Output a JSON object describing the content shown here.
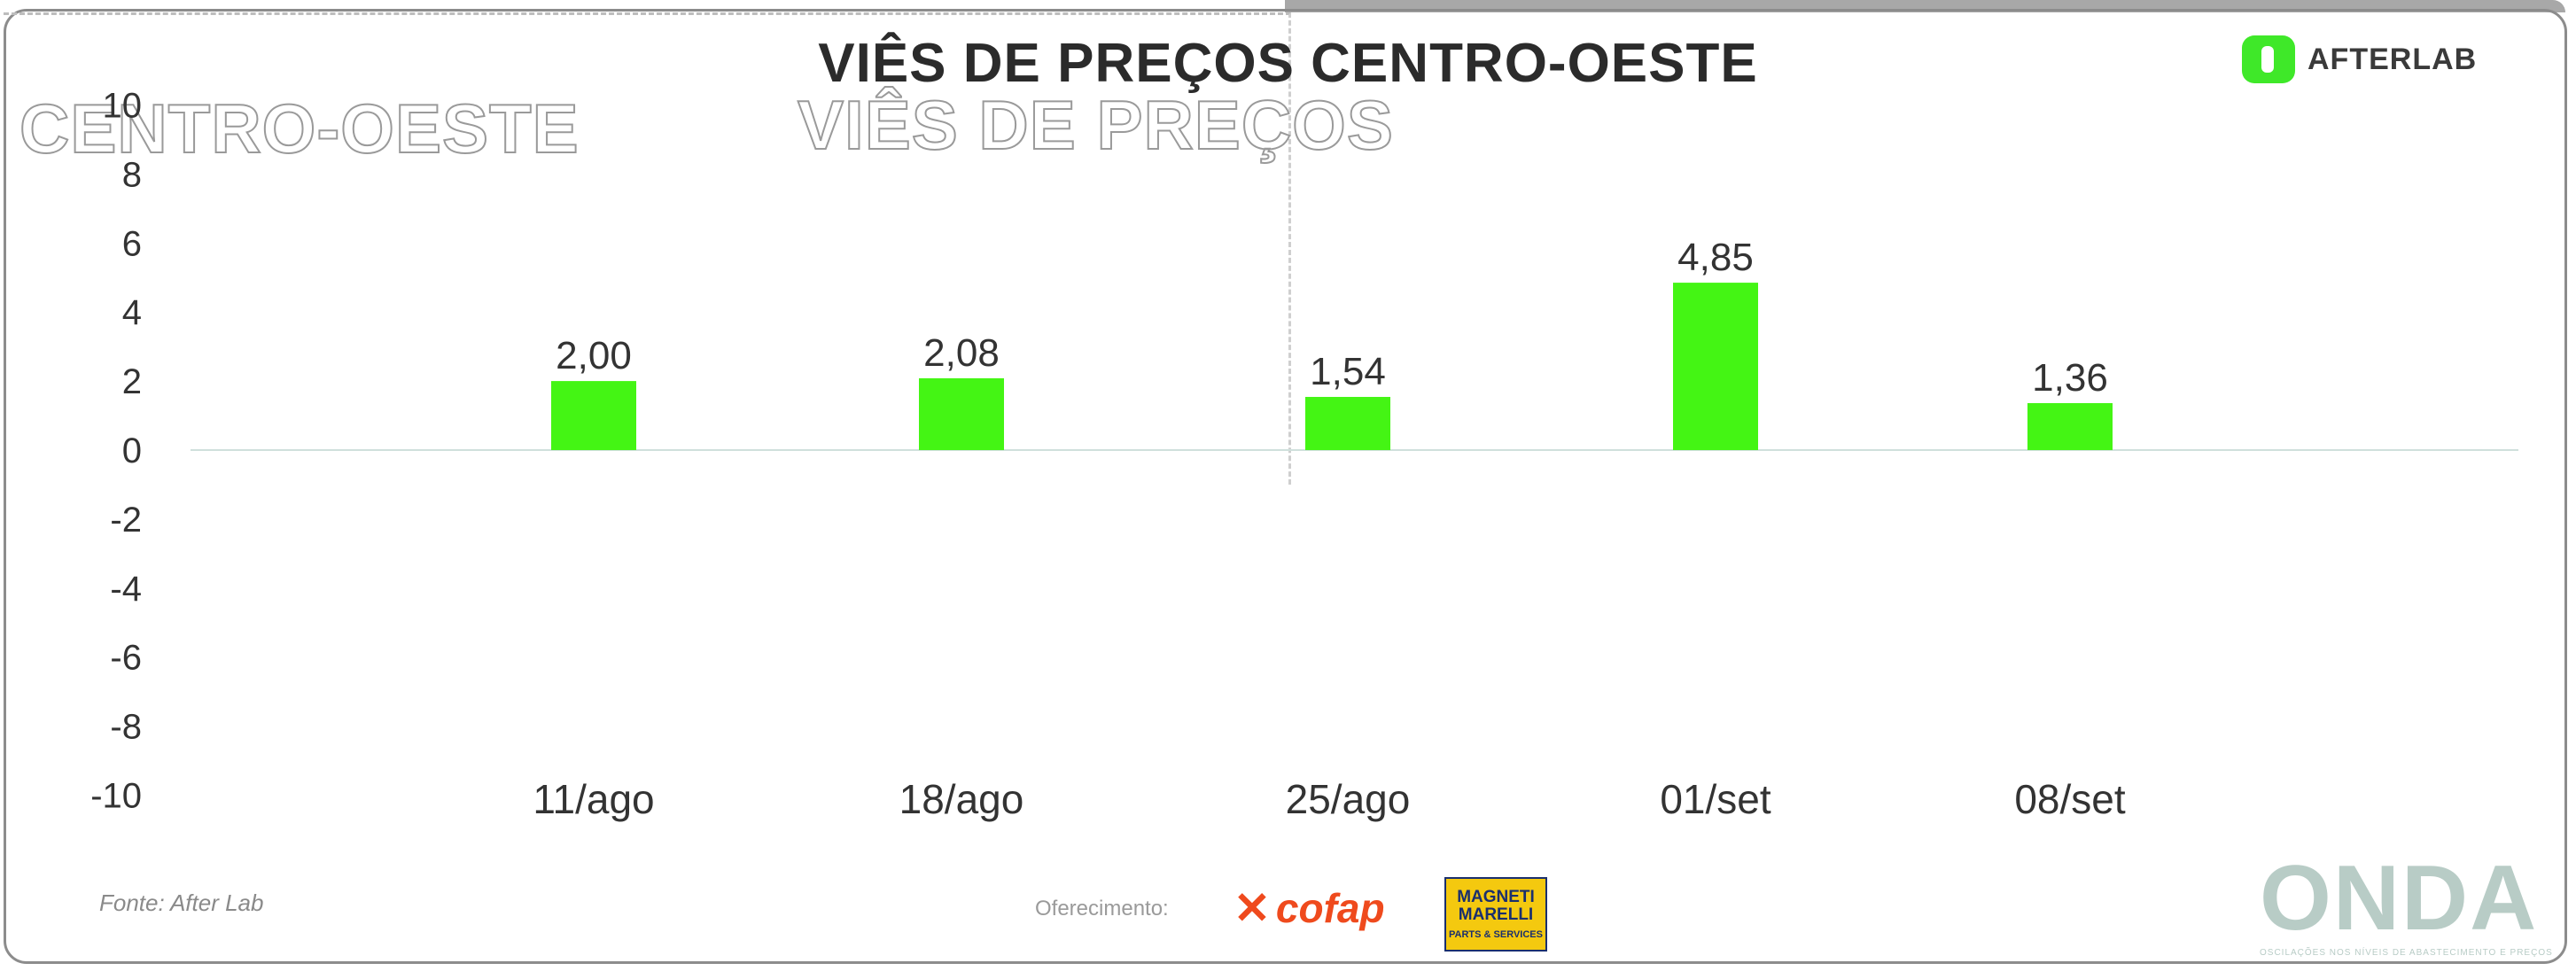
{
  "title": "VIÊS DE PREÇOS CENTRO-OESTE",
  "ghost_left": "CENTRO-OESTE",
  "ghost_mid": "VIÊS DE PREÇOS",
  "logo": {
    "name": "AFTERLAB",
    "icon": "afterlab-logo-icon",
    "color": "#3fe829"
  },
  "footer": {
    "source": "Fonte: After Lab",
    "support_label": "Oferecimento:",
    "sponsor_1": "cofap",
    "sponsor_2_name": "MAGNETI MARELLI",
    "sponsor_2_sub": "PARTS & SERVICES",
    "brand": "ONDA",
    "brand_tagline": "OSCILAÇÕES NOS NÍVEIS DE ABASTECIMENTO E PREÇOS"
  },
  "chart_data": {
    "type": "bar",
    "categories": [
      "11/ago",
      "18/ago",
      "25/ago",
      "01/set",
      "08/set"
    ],
    "values": [
      2.0,
      2.08,
      1.54,
      4.85,
      1.36
    ],
    "value_labels": [
      "2,00",
      "2,08",
      "1,54",
      "4,85",
      "1,36"
    ],
    "ylim": [
      -10,
      10
    ],
    "yticks": [
      10,
      8,
      6,
      4,
      2,
      0,
      -2,
      -4,
      -6,
      -8,
      -10
    ],
    "bar_color": "#44f514",
    "grid": false,
    "legend": "none"
  }
}
